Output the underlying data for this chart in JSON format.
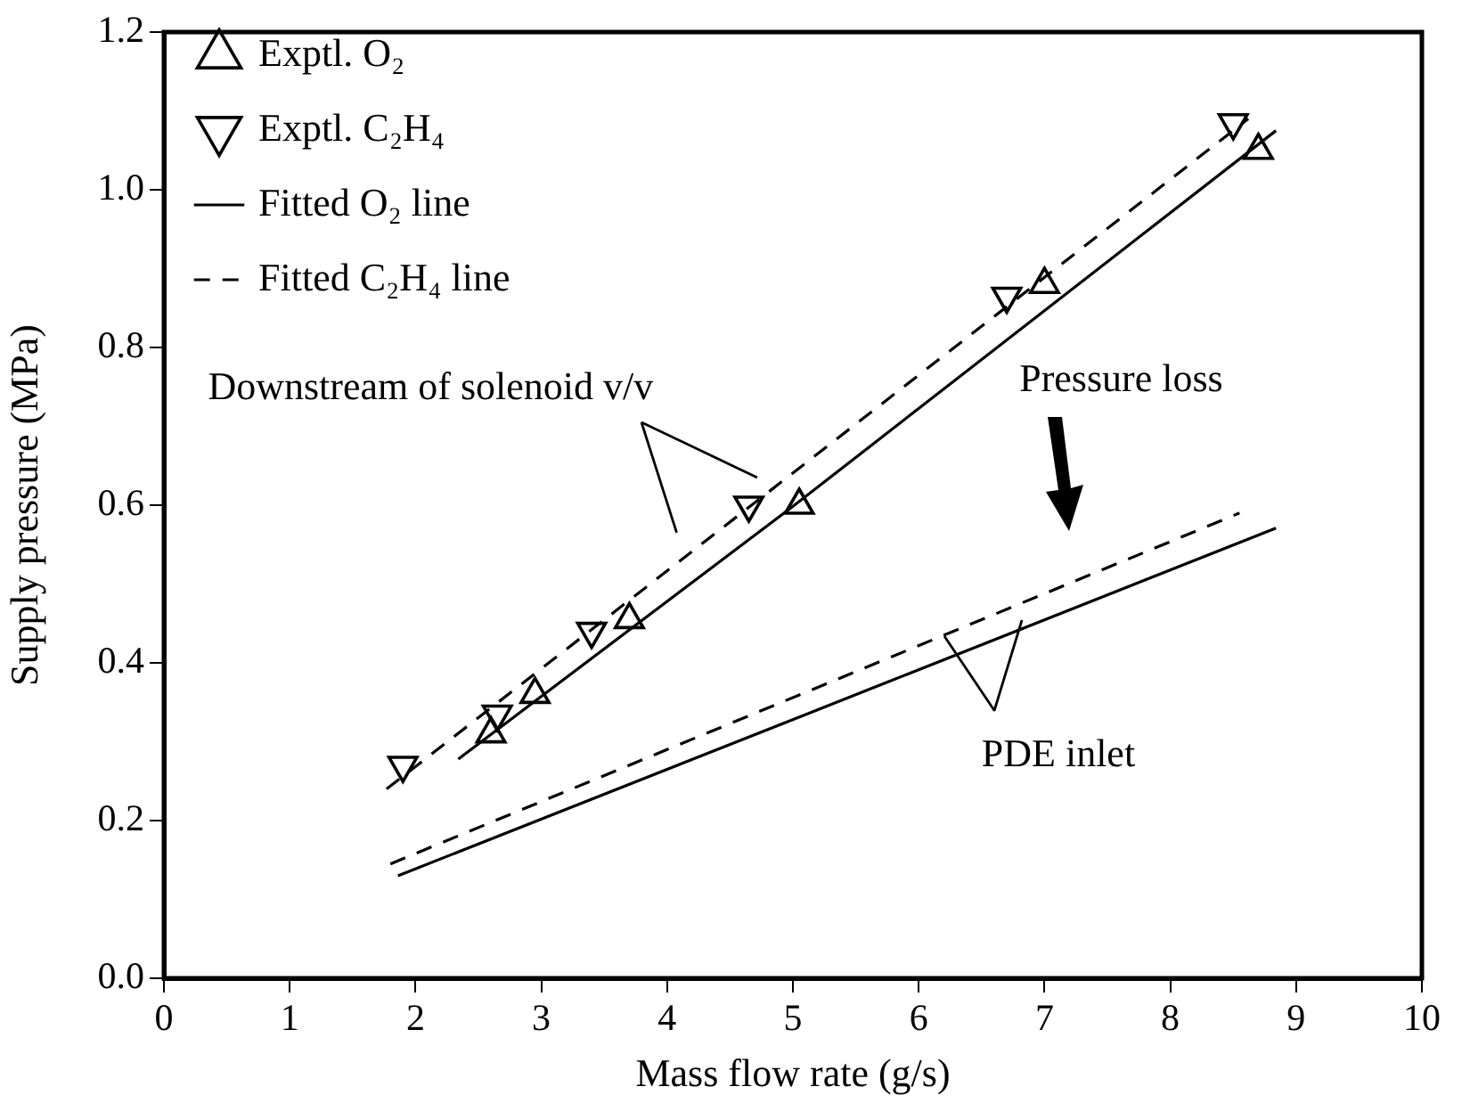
{
  "chart_data": {
    "type": "scatter",
    "xlabel": "Mass flow rate (g/s)",
    "ylabel": "Supply pressure (MPa)",
    "xlim": [
      0,
      10
    ],
    "xticks": [
      0,
      1,
      2,
      3,
      4,
      5,
      6,
      7,
      8,
      9,
      10
    ],
    "ylim": [
      0,
      1.2
    ],
    "yticks": [
      {
        "value": 0,
        "label": "0.0"
      },
      {
        "value": 0.2,
        "label": "0.2"
      },
      {
        "value": 0.4,
        "label": "0.4"
      },
      {
        "value": 0.6,
        "label": "0.6"
      },
      {
        "value": 0.8,
        "label": "0.8"
      },
      {
        "value": 1,
        "label": "1.0"
      },
      {
        "value": 1.2,
        "label": "1.2"
      }
    ],
    "grid": false,
    "legend": "top left",
    "series": [
      {
        "name": "Exptl. O₂",
        "type": "scatter",
        "marker": "triangle",
        "color": "#000000",
        "x": [
          2.6,
          2.95,
          3.7,
          5.05,
          7.0,
          8.7
        ],
        "values": [
          0.31,
          0.36,
          0.455,
          0.6,
          0.88,
          1.05
        ]
      },
      {
        "name": "Exptl. C₂H₄",
        "type": "scatter",
        "marker": "triangle",
        "color": "#000000",
        "x": [
          1.9,
          2.65,
          3.4,
          4.65,
          6.7,
          8.5
        ],
        "values": [
          0.27,
          0.335,
          0.44,
          0.6,
          0.865,
          1.085
        ]
      },
      {
        "name": "Fitted O₂ line",
        "type": "line",
        "line_style": "solid",
        "color": "#000000",
        "x": [
          2.34,
          4.98,
          8.84
        ],
        "values": [
          0.278,
          0.596,
          1.075
        ]
      },
      {
        "name": "Fitted C₂H₄ line",
        "type": "line",
        "line_style": "dashed",
        "color": "#000000",
        "x": [
          1.77,
          8.62
        ],
        "values": [
          0.24,
          1.09
        ]
      },
      {
        "type": "line",
        "line_style": "solid",
        "color": "#000000",
        "x": [
          1.86,
          5.03,
          8.84
        ],
        "values": [
          0.13,
          0.33,
          0.571
        ]
      },
      {
        "type": "line",
        "line_style": "dashed",
        "color": "#000000",
        "x": [
          1.8,
          8.55
        ],
        "values": [
          0.145,
          0.59
        ]
      }
    ],
    "annotations": [
      "Downstream of solenoid v/v",
      "Pressure loss",
      {
        "text": "PDE inlet",
        "x": 6.2,
        "y": 0.435
      }
    ]
  }
}
